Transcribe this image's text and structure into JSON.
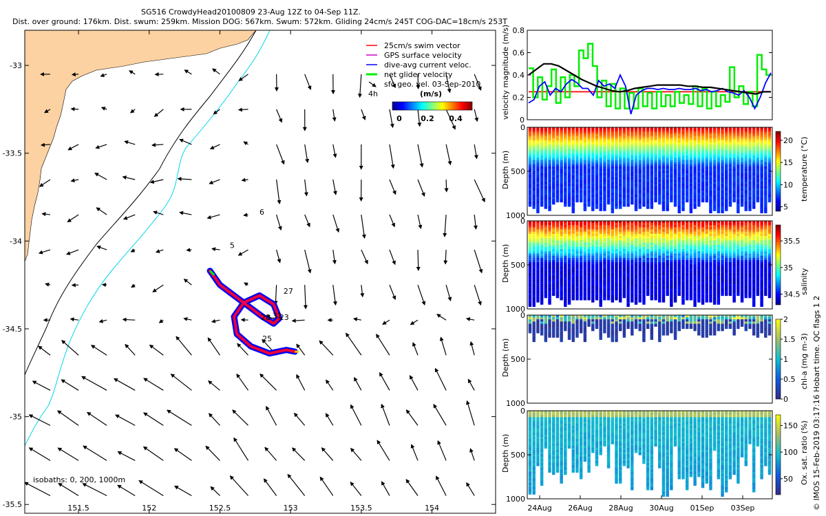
{
  "header": {
    "line1": "SG516 CrowdyHead20100809 23-Aug 12Z to 04-Sep 11Z.",
    "line2": "Dist. over ground: 176km. Dist. swum: 259km. Mission DOG: 567km. Swum: 572km. Gliding 24cm/s 245T COG-DAC=18cm/s 253T"
  },
  "colors": {
    "land": "#fcd2a2",
    "isobath_200": "#00d6e8",
    "isobath_1000": "#000000",
    "swim_vector": "#ff0000",
    "gps_velocity": "#cc00cc",
    "dac": "#0000ff",
    "net_velocity": "#00ee00",
    "sfc_geo": "#000000"
  },
  "chart_data": [
    {
      "type": "scatter",
      "subtype": "map",
      "xlim": [
        151.12,
        154.45
      ],
      "ylim": [
        -35.55,
        -32.8
      ],
      "xticks": [
        151.5,
        152,
        152.5,
        153,
        153.5,
        154
      ],
      "xtick_labels": [
        "151.5",
        "152",
        "152.5",
        "153",
        "153.5",
        "154"
      ],
      "yticks": [
        -33,
        -33.5,
        -34,
        -34.5,
        -35,
        -35.5
      ],
      "ytick_labels": [
        "-33",
        "-33.5",
        "-34",
        "-34.5",
        "-35",
        "-35.5"
      ],
      "legend": [
        "25cm/s swim vector",
        "GPS surface velocity",
        "dive-avg current veloc.",
        "net glider velocity",
        "sfc geo. vel. 03-Sep-2010"
      ],
      "legend_position": "top-right",
      "scale_label": "4h",
      "colorbar": {
        "title": "(m/s)",
        "ticks": [
          "0",
          "0.2",
          "0.4"
        ],
        "range": [
          0,
          0.5
        ]
      },
      "isobaths_label": "isobaths: 0, 200, 1000m",
      "day_labels": [
        {
          "text": "6",
          "lon": 152.78,
          "lat": -33.85
        },
        {
          "text": "5",
          "lon": 152.57,
          "lat": -34.04
        },
        {
          "text": "27",
          "lon": 152.95,
          "lat": -34.3
        },
        {
          "text": "28",
          "lon": 152.79,
          "lat": -34.45
        },
        {
          "text": "31",
          "lon": 152.87,
          "lat": -34.44
        },
        {
          "text": "23",
          "lon": 152.92,
          "lat": -34.45
        },
        {
          "text": "25",
          "lon": 152.8,
          "lat": -34.57
        }
      ],
      "track": [
        [
          152.43,
          -34.17
        ],
        [
          152.5,
          -34.25
        ],
        [
          152.6,
          -34.31
        ],
        [
          152.7,
          -34.37
        ],
        [
          152.8,
          -34.43
        ],
        [
          152.88,
          -34.47
        ],
        [
          152.92,
          -34.44
        ],
        [
          152.88,
          -34.36
        ],
        [
          152.78,
          -34.31
        ],
        [
          152.67,
          -34.35
        ],
        [
          152.6,
          -34.43
        ],
        [
          152.62,
          -34.53
        ],
        [
          152.72,
          -34.6
        ],
        [
          152.85,
          -34.64
        ],
        [
          152.97,
          -34.62
        ],
        [
          153.03,
          -34.63
        ]
      ],
      "current_field_range": {
        "lon": [
          151.3,
          154.3
        ],
        "lat": [
          -35.45,
          -33.05
        ]
      }
    },
    {
      "type": "line",
      "ylabel": "velocity magnitude (m/s)",
      "ylim": [
        0,
        0.8
      ],
      "yticks": [
        "0",
        "0.2",
        "0.4",
        "0.6",
        "0.8"
      ],
      "series": [
        {
          "name": "swim vector",
          "color": "#ff0000",
          "values": [
            0.25,
            0.25
          ]
        },
        {
          "name": "net glider velocity",
          "color": "#00ee00",
          "style": "stairs",
          "values": [
            0.46,
            0.2,
            0.38,
            0.18,
            0.3,
            0.45,
            0.15,
            0.38,
            0.2,
            0.4,
            0.3,
            0.62,
            0.55,
            0.68,
            0.48,
            0.2,
            0.35,
            0.12,
            0.32,
            0.1,
            0.28,
            0.1,
            0.24,
            0.1,
            0.28,
            0.12,
            0.24,
            0.1,
            0.25,
            0.12,
            0.22,
            0.12,
            0.25,
            0.15,
            0.22,
            0.14,
            0.3,
            0.12,
            0.28,
            0.1,
            0.25,
            0.12,
            0.22,
            0.16,
            0.47,
            0.2,
            0.3,
            0.14,
            0.25,
            0.12,
            0.58,
            0.45,
            0.4
          ]
        },
        {
          "name": "dive-avg current",
          "color": "#0000ff",
          "values": [
            0.15,
            0.18,
            0.3,
            0.34,
            0.22,
            0.28,
            0.25,
            0.32,
            0.36,
            0.33,
            0.28,
            0.28,
            0.22,
            0.35,
            0.3,
            0.32,
            0.28,
            0.4,
            0.3,
            0.05,
            0.22,
            0.26,
            0.28,
            0.28,
            0.27,
            0.28,
            0.27,
            0.27,
            0.28,
            0.27,
            0.27,
            0.28,
            0.26,
            0.27,
            0.25,
            0.26,
            0.28,
            0.25,
            0.24,
            0.22,
            0.26,
            0.2,
            0.1,
            0.2,
            0.33,
            0.42
          ]
        },
        {
          "name": "sfc geo vel",
          "color": "#000000",
          "values": [
            0.4,
            0.45,
            0.5,
            0.5,
            0.48,
            0.44,
            0.4,
            0.36,
            0.33,
            0.3,
            0.28,
            0.26,
            0.25,
            0.26,
            0.28,
            0.29,
            0.3,
            0.31,
            0.31,
            0.31,
            0.31,
            0.3,
            0.3,
            0.29,
            0.29,
            0.28,
            0.27,
            0.26,
            0.25,
            0.24,
            0.23,
            0.25,
            0.25
          ]
        }
      ]
    },
    {
      "type": "heatmap",
      "ylabel": "Depth (m)",
      "yticks": [
        "0",
        "500",
        "1000"
      ],
      "colorbar_label": "temperature (°C)",
      "colorbar_ticks": [
        "5",
        "10",
        "15",
        "20"
      ],
      "vmin": 4,
      "vmax": 22,
      "surface": 21,
      "deep": 5
    },
    {
      "type": "heatmap",
      "ylabel": "Depth (m)",
      "yticks": [
        "0",
        "500",
        "1000"
      ],
      "colorbar_label": "salinity",
      "colorbar_ticks": [
        "34.5",
        "35",
        "35.5"
      ],
      "vmin": 34.3,
      "vmax": 35.8,
      "surface": 35.6,
      "deep": 34.4
    },
    {
      "type": "heatmap",
      "ylabel": "Depth (m)",
      "yticks": [
        "0",
        "500",
        "1000"
      ],
      "colorbar_label": "chl-a (mg m-3)",
      "colorbar_ticks": [
        "0",
        "0.5",
        "1",
        "1.5",
        "2"
      ],
      "vmin": 0,
      "vmax": 2,
      "max_depth": 300
    },
    {
      "type": "heatmap",
      "ylabel": "Depth (m)",
      "yticks": [
        "0",
        "500",
        "1000"
      ],
      "colorbar_label": "Ox. sat. ratio (%)",
      "colorbar_ticks": [
        "50",
        "100",
        "150"
      ],
      "vmin": 20,
      "vmax": 170,
      "xtick_labels": [
        "24Aug",
        "26Aug",
        "28Aug",
        "30Aug",
        "01Sep",
        "03Sep"
      ]
    }
  ],
  "footer": {
    "credit": "© IMOS 15-Feb-2019 03:17:16 Hobart time. QC flags 1  2"
  }
}
